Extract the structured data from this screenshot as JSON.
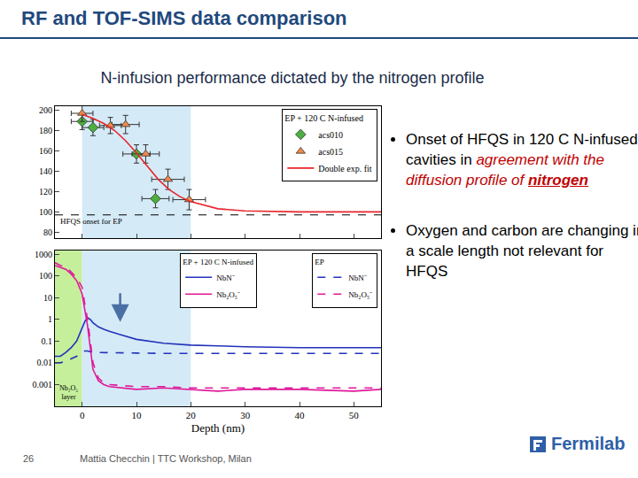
{
  "slide": {
    "header": {
      "title": "RF and TOF-SIMS data comparison",
      "subtitle": "N-infusion performance dictated by the nitrogen profile"
    },
    "bullets": [
      [
        {
          "text": "Onset of HFQS in 120 C N-infused cavities in ",
          "style": "plain"
        },
        {
          "text": "agreement with the diffusion profile of ",
          "style": "red_italic"
        },
        {
          "text": "nitrogen",
          "style": "red_italic_bold_underline"
        }
      ],
      [
        {
          "text": "Oxygen and carbon are changing in a scale length not relevant for HFQS",
          "style": "plain"
        }
      ]
    ],
    "footer": {
      "page": "26",
      "author_event": "Mattia Checchin | TTC Workshop, Milan",
      "logo": "Fermilab"
    }
  },
  "chart_data": [
    {
      "type": "scatter",
      "legend_title": "EP + 120 C N-infused",
      "legend": "top right",
      "grid": false,
      "tick_labels": "y",
      "xlim": [
        -5,
        55
      ],
      "xticks": [
        0,
        10,
        20,
        30,
        40,
        50
      ],
      "ylim": [
        74,
        204
      ],
      "yticks": [
        80,
        100,
        120,
        140,
        160,
        180,
        200
      ],
      "shaded_regions": [
        {
          "x0": 0,
          "x1": 20,
          "color": "#d5eaf7"
        }
      ],
      "reference_line": {
        "y": 97,
        "label": "HFQS onset for EP",
        "line_style": "dash"
      },
      "series": [
        {
          "name": "acs010",
          "type": "scatter",
          "marker": "diamond",
          "color": "#4caf3f",
          "x": [
            0,
            2,
            10,
            13.5
          ],
          "values": [
            189,
            183,
            157,
            113
          ],
          "x_error": [
            2,
            2,
            2.5,
            2.5
          ],
          "y_error": [
            8,
            8,
            9,
            9
          ]
        },
        {
          "name": "acs015",
          "type": "scatter",
          "marker": "triangle-up",
          "color": "#f08a4b",
          "x": [
            0,
            5.2,
            8,
            11.7,
            15.8,
            19.7
          ],
          "values": [
            197,
            185,
            186,
            157,
            132,
            112
          ],
          "x_error": [
            2,
            2,
            2.5,
            2.5,
            3,
            3
          ],
          "y_error": [
            8,
            8,
            9,
            9,
            10,
            10
          ]
        },
        {
          "name": "Double exp. fit",
          "type": "line",
          "line_style": "solid",
          "color": "#e8262a",
          "x": [
            0,
            2,
            4,
            6,
            8,
            10,
            12,
            14,
            16,
            18,
            20,
            25,
            30,
            40,
            55
          ],
          "values": [
            196,
            192,
            187,
            180,
            170,
            158,
            145,
            132,
            122,
            115,
            110,
            103,
            101,
            100,
            100
          ]
        }
      ]
    },
    {
      "type": "line",
      "log": "y",
      "legend": "top right",
      "grid": false,
      "x_label": "Depth (nm)",
      "xlim": [
        -5,
        55
      ],
      "xticks": [
        0,
        10,
        20,
        30,
        40,
        50
      ],
      "ylim": [
        0.0001,
        1500
      ],
      "yticks": [
        0.001,
        0.01,
        0.1,
        1,
        10,
        100,
        1000
      ],
      "shaded_regions": [
        {
          "x0": -5,
          "x1": 0,
          "color": "#c5ef9b",
          "label": "Nb₂O₅ layer"
        },
        {
          "x0": 0,
          "x1": 20,
          "color": "#d5eaf7"
        }
      ],
      "series": [
        {
          "name": "NbN⁻",
          "group": "EP + 120 C N-infused",
          "line_style": "solid",
          "color": "#2233bb",
          "x": [
            -5,
            -4,
            -3,
            -2,
            -1,
            0,
            0.5,
            1,
            1.5,
            2,
            3,
            4,
            5,
            7,
            10,
            15,
            20,
            25,
            30,
            40,
            50,
            55
          ],
          "values": [
            0.02,
            0.02,
            0.03,
            0.05,
            0.1,
            0.4,
            0.8,
            1.2,
            1.0,
            0.7,
            0.45,
            0.35,
            0.28,
            0.2,
            0.12,
            0.08,
            0.065,
            0.06,
            0.055,
            0.05,
            0.05,
            0.05
          ]
        },
        {
          "name": "Nb₂O₅⁻",
          "group": "EP + 120 C N-infused",
          "line_style": "solid",
          "color": "#e0189a",
          "x": [
            -5,
            -4,
            -3,
            -2,
            -1,
            0,
            0.5,
            1,
            1.5,
            2,
            3,
            4,
            5,
            7,
            10,
            15,
            20,
            25,
            30,
            40,
            50,
            55
          ],
          "values": [
            300,
            250,
            200,
            120,
            60,
            15,
            3,
            0.5,
            0.05,
            0.005,
            0.0015,
            0.001,
            0.0008,
            0.0007,
            0.0006,
            0.0007,
            0.0006,
            0.0005,
            0.0006,
            0.0006,
            0.0005,
            0.0006
          ]
        },
        {
          "name": "NbN⁻",
          "group": "EP",
          "line_style": "dash",
          "color": "#2233bb",
          "x": [
            -5,
            -4,
            -3,
            -2,
            -1,
            0,
            0.5,
            1,
            1.5,
            2,
            3,
            4,
            5,
            7,
            10,
            15,
            20,
            25,
            30,
            40,
            50,
            55
          ],
          "values": [
            0.01,
            0.01,
            0.012,
            0.015,
            0.02,
            0.03,
            0.035,
            0.035,
            0.033,
            0.03,
            0.03,
            0.03,
            0.028,
            0.028,
            0.028,
            0.027,
            0.027,
            0.027,
            0.027,
            0.027,
            0.027,
            0.027
          ]
        },
        {
          "name": "Nb₂O₅⁻",
          "group": "EP",
          "line_style": "dash",
          "color": "#e0189a",
          "x": [
            -5,
            -4,
            -3,
            -2,
            -1,
            0,
            0.5,
            1,
            1.5,
            2,
            3,
            4,
            5,
            7,
            10,
            15,
            20,
            25,
            30,
            40,
            50,
            55
          ],
          "values": [
            400,
            300,
            250,
            150,
            80,
            30,
            5,
            1,
            0.1,
            0.01,
            0.002,
            0.0012,
            0.001,
            0.0009,
            0.0008,
            0.0008,
            0.0007,
            0.0007,
            0.0007,
            0.0007,
            0.0007,
            0.0007
          ]
        }
      ]
    }
  ]
}
